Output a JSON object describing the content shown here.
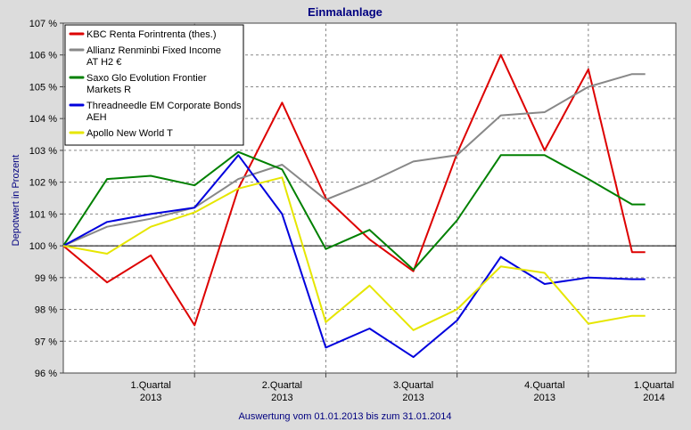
{
  "chart_data": {
    "type": "line",
    "title": "Einmalanlage",
    "ylabel": "Depotwert in Prozent",
    "xlabel": "Auswertung vom 01.01.2013 bis zum 31.01.2014",
    "ylim": [
      96,
      107
    ],
    "yticks": [
      96,
      97,
      98,
      99,
      100,
      101,
      102,
      103,
      104,
      105,
      106,
      107
    ],
    "ytick_suffix": " %",
    "xlim": [
      0,
      14
    ],
    "x_categories": [
      {
        "line1": "1.Quartal",
        "line2": "2013",
        "pos": 2
      },
      {
        "line1": "2.Quartal",
        "line2": "2013",
        "pos": 5
      },
      {
        "line1": "3.Quartal",
        "line2": "2013",
        "pos": 8
      },
      {
        "line1": "4.Quartal",
        "line2": "2013",
        "pos": 11
      },
      {
        "line1": "1.Quartal",
        "line2": "2014",
        "pos": 13.5
      }
    ],
    "x_gridlines": [
      3,
      6,
      9,
      12
    ],
    "reference_line": 100,
    "legend_position": "top-left",
    "series": [
      {
        "name": "KBC Renta Forintrenta (thes.)",
        "color": "#dd0000",
        "x": [
          0,
          1,
          2,
          3,
          4,
          5,
          6,
          7,
          8,
          9,
          10,
          11,
          12,
          13,
          13.3
        ],
        "values": [
          100.0,
          98.85,
          99.7,
          97.5,
          101.8,
          104.5,
          101.5,
          100.2,
          99.2,
          102.9,
          106.0,
          103.0,
          105.55,
          99.8,
          99.8
        ]
      },
      {
        "name": "Allianz Renminbi Fixed Income AT H2 €",
        "color": "#888888",
        "x": [
          0,
          1,
          2,
          3,
          4,
          5,
          6,
          7,
          8,
          9,
          10,
          11,
          12,
          13,
          13.3
        ],
        "values": [
          100.0,
          100.6,
          100.85,
          101.2,
          102.1,
          102.55,
          101.45,
          102.0,
          102.65,
          102.85,
          104.1,
          104.2,
          105.0,
          105.4,
          105.4
        ]
      },
      {
        "name": "Saxo Glo Evolution Frontier Markets R",
        "color": "#008000",
        "x": [
          0,
          1,
          2,
          3,
          4,
          5,
          6,
          7,
          8,
          9,
          10,
          11,
          12,
          13,
          13.3
        ],
        "values": [
          100.0,
          102.1,
          102.2,
          101.9,
          102.95,
          102.4,
          99.9,
          100.5,
          99.25,
          100.8,
          102.85,
          102.85,
          102.1,
          101.3,
          101.3
        ]
      },
      {
        "name": "Threadneedle EM Corporate Bonds AEH",
        "color": "#0000dd",
        "x": [
          0,
          1,
          2,
          3,
          4,
          5,
          6,
          7,
          8,
          9,
          10,
          11,
          12,
          13,
          13.3
        ],
        "values": [
          100.0,
          100.75,
          101.0,
          101.2,
          102.85,
          101.0,
          96.8,
          97.4,
          96.5,
          97.65,
          99.65,
          98.8,
          99.0,
          98.95,
          98.95
        ]
      },
      {
        "name": "Apollo New World T",
        "color": "#e6e600",
        "x": [
          0,
          1,
          2,
          3,
          4,
          5,
          6,
          7,
          8,
          9,
          10,
          11,
          12,
          13,
          13.3
        ],
        "values": [
          100.0,
          99.75,
          100.6,
          101.05,
          101.8,
          102.15,
          97.6,
          98.75,
          97.35,
          98.0,
          99.35,
          99.15,
          97.55,
          97.8,
          97.8
        ]
      }
    ]
  }
}
